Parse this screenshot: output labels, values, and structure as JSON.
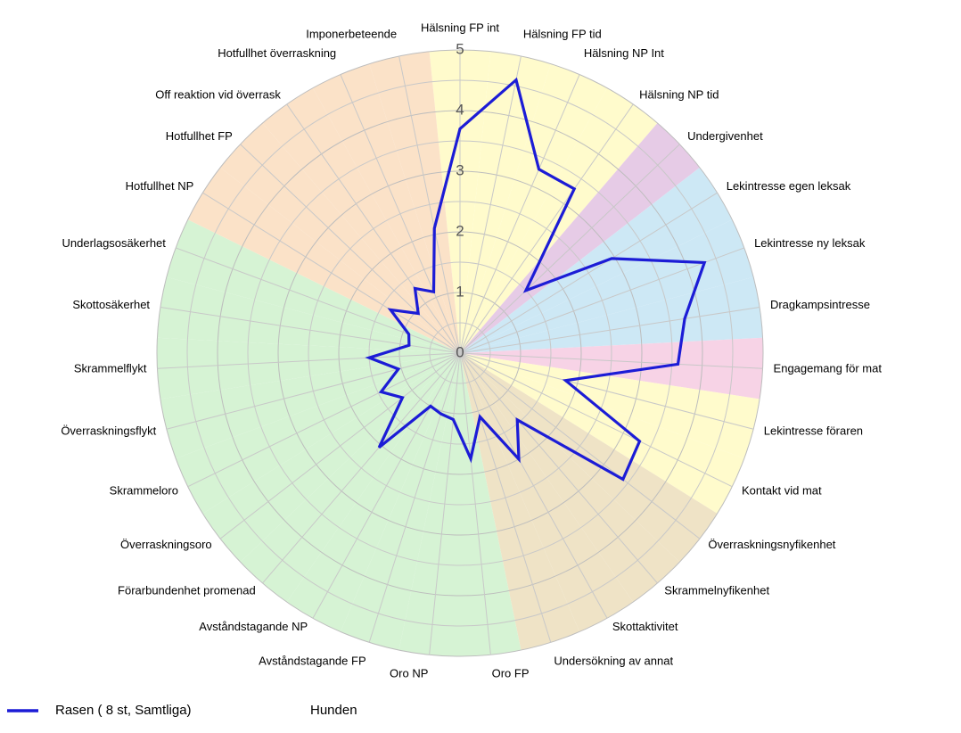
{
  "chart_data": {
    "type": "radar",
    "categories": [
      "Hälsning FP int",
      "Hälsning FP tid",
      "Hälsning NP Int",
      "Hälsning NP tid",
      "Undergivenhet",
      "Lekintresse egen leksak",
      "Lekintresse ny leksak",
      "Dragkampsintresse",
      "Engagemang för mat",
      "Lekintresse föraren",
      "Kontakt vid mat",
      "Överraskningsnyfikenhet",
      "Skrammelnyfikenhet",
      "Skottaktivitet",
      "Undersökning av annat",
      "Oro FP",
      "Oro NP",
      "Avståndstagande FP",
      "Avståndstagande NP",
      "Förarbundenhet promenad",
      "Överraskningsoro",
      "Skrammeloro",
      "Överraskningsflykt",
      "Skrammelflykt",
      "Skottosäkerhet",
      "Underlagsosäkerhet",
      "Hotfullhet NP",
      "Hotfullhet FP",
      "Off reaktion vid överrask",
      "Hotfullhet överraskning",
      "Imponerbeteende"
    ],
    "category_colors": [
      "#fffbcc",
      "#fffbcc",
      "#fffbcc",
      "#fffbcc",
      "#e6cbe6",
      "#cde8f5",
      "#cde8f5",
      "#cde8f5",
      "#f7d3e6",
      "#fffbcc",
      "#fffbcc",
      "#efe3c6",
      "#efe3c6",
      "#efe3c6",
      "#efe3c6",
      "#d6f3d4",
      "#d6f3d4",
      "#d6f3d4",
      "#d6f3d4",
      "#d6f3d4",
      "#d6f3d4",
      "#d6f3d4",
      "#d6f3d4",
      "#d6f3d4",
      "#d6f3d4",
      "#d6f3d4",
      "#fbe2c8",
      "#fbe2c8",
      "#fbe2c8",
      "#fbe2c8",
      "#fbe2c8"
    ],
    "series": [
      {
        "name": "Rasen ( 8 st, Samtliga)",
        "color": "#1c1cd6",
        "values": [
          3.7,
          4.6,
          3.3,
          3.3,
          1.5,
          2.95,
          4.3,
          3.75,
          3.6,
          1.8,
          3.3,
          3.4,
          1.45,
          2.0,
          1.1,
          1.75,
          1.1,
          1.05,
          1.0,
          2.05,
          1.2,
          1.45,
          1.05,
          1.5,
          0.85,
          0.9,
          1.35,
          0.95,
          1.3,
          1.1,
          2.1
        ]
      },
      {
        "name": "Hunden",
        "color": null,
        "values": [
          null,
          null,
          null,
          null,
          null,
          null,
          null,
          null,
          null,
          null,
          null,
          null,
          null,
          null,
          null,
          null,
          null,
          null,
          null,
          null,
          null,
          null,
          null,
          null,
          null,
          null,
          null,
          null,
          null,
          null,
          null
        ]
      }
    ],
    "ylim": [
      0,
      5
    ],
    "yticks": [
      0,
      1,
      2,
      3,
      4,
      5
    ],
    "minor_yticks": [
      0.5,
      1.5,
      2.5,
      3.5,
      4.5
    ],
    "grid": true
  }
}
